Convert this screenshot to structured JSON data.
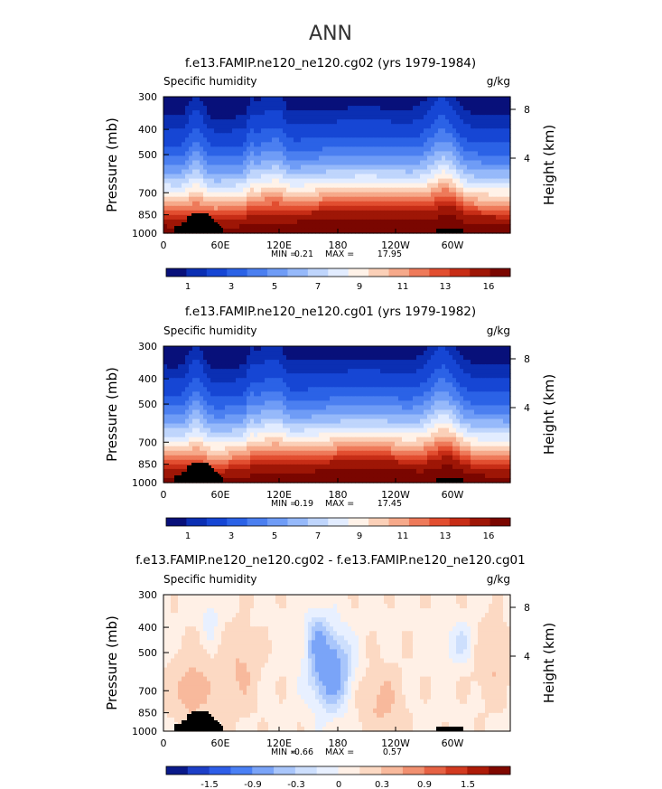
{
  "page_title": "ANN",
  "colors": {
    "seq_scale": [
      "#08107a",
      "#0b2fb3",
      "#1646d4",
      "#2b62e6",
      "#4b7ff0",
      "#6f9cf6",
      "#96b9fa",
      "#bfd5fc",
      "#e2ecff",
      "#fff2e8",
      "#fbd0b8",
      "#f6a98a",
      "#ee7a5a",
      "#e24e30",
      "#c72d16",
      "#9e1606",
      "#7a0600"
    ],
    "div_scale": [
      "#0a1a8a",
      "#1d3fc7",
      "#2e5ee8",
      "#4a80f5",
      "#7aa4f8",
      "#a9c6fb",
      "#cddffd",
      "#e8f0ff",
      "#fff0e6",
      "#fcd9c3",
      "#f8b99c",
      "#f19070",
      "#e66244",
      "#d23a20",
      "#ad1b08",
      "#800800"
    ],
    "land": "#000000"
  },
  "chart_data": [
    {
      "type": "contour",
      "title": "f.e13.FAMIP.ne120_ne120.cg02 (yrs 1979-1984)",
      "left_label": "Specific humidity",
      "right_label": "g/kg",
      "ylabel": "Pressure (mb)",
      "y2label": "Height (km)",
      "yticks": [
        "300",
        "400",
        "500",
        "700",
        "850",
        "1000"
      ],
      "y2ticks": [
        "8",
        "4"
      ],
      "xticks": [
        "0",
        "60E",
        "120E",
        "180",
        "120W",
        "60W"
      ],
      "min_label": "MIN =",
      "min_value": "0.21",
      "max_label": "MAX =",
      "max_value": "17.95",
      "data_min": 0.21,
      "data_max": 17.95,
      "colorbar_labels": [
        "1",
        "3",
        "5",
        "7",
        "9",
        "11",
        "13",
        "16"
      ],
      "scale": "seq"
    },
    {
      "type": "contour",
      "title": "f.e13.FAMIP.ne120_ne120.cg01 (yrs 1979-1982)",
      "left_label": "Specific humidity",
      "right_label": "g/kg",
      "ylabel": "Pressure (mb)",
      "y2label": "Height (km)",
      "yticks": [
        "300",
        "400",
        "500",
        "700",
        "850",
        "1000"
      ],
      "y2ticks": [
        "8",
        "4"
      ],
      "xticks": [
        "0",
        "60E",
        "120E",
        "180",
        "120W",
        "60W"
      ],
      "min_label": "MIN =",
      "min_value": "0.19",
      "max_label": "MAX =",
      "max_value": "17.45",
      "data_min": 0.19,
      "data_max": 17.45,
      "colorbar_labels": [
        "1",
        "3",
        "5",
        "7",
        "9",
        "11",
        "13",
        "16"
      ],
      "scale": "seq"
    },
    {
      "type": "contour",
      "title": "f.e13.FAMIP.ne120_ne120.cg02 - f.e13.FAMIP.ne120_ne120.cg01",
      "left_label": "Specific humidity",
      "right_label": "g/kg",
      "ylabel": "Pressure (mb)",
      "y2label": "Height (km)",
      "yticks": [
        "300",
        "400",
        "500",
        "700",
        "850",
        "1000"
      ],
      "y2ticks": [
        "8",
        "4"
      ],
      "xticks": [
        "0",
        "60E",
        "120E",
        "180",
        "120W",
        "60W"
      ],
      "min_label": "MIN =",
      "min_value": "-0.66",
      "max_label": "MAX =",
      "max_value": "0.57",
      "data_min": -0.66,
      "data_max": 0.57,
      "colorbar_labels": [
        "-1.5",
        "-0.9",
        "-0.3",
        "0",
        "0.3",
        "0.9",
        "1.5"
      ],
      "scale": "div"
    }
  ]
}
